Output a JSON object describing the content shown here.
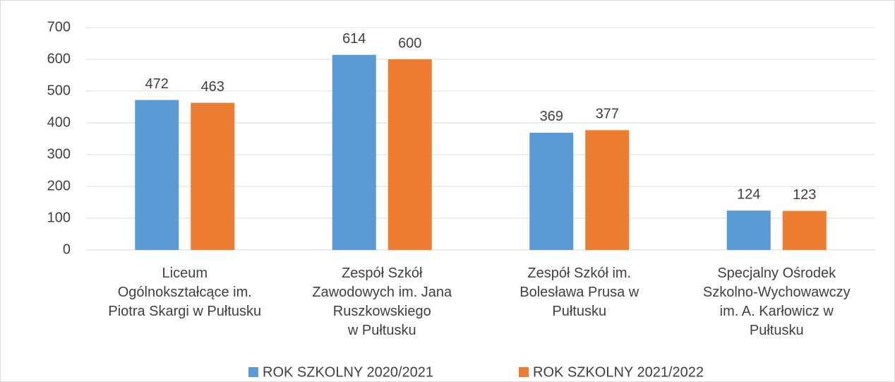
{
  "chart_data": {
    "type": "bar",
    "categories": [
      "Liceum\nOgólnokształcące im.\nPiotra Skargi w Pułtusku",
      "Zespół Szkół\nZawodowych im. Jana\nRuszkowskiego\nw Pułtusku",
      "Zespół Szkół im.\nBolesława Prusa w\nPułtusku",
      "Specjalny Ośrodek\nSzkolno-Wychowawczy\nim. A. Karłowicz w\nPułtusku"
    ],
    "series": [
      {
        "name": "ROK SZKOLNY 2020/2021",
        "color": "#5b9bd5",
        "values": [
          472,
          614,
          369,
          124
        ]
      },
      {
        "name": "ROK SZKOLNY 2021/2022",
        "color": "#ed7d31",
        "values": [
          463,
          600,
          377,
          123
        ]
      }
    ],
    "ylim": [
      0,
      700
    ],
    "yticks": [
      0,
      100,
      200,
      300,
      400,
      500,
      600,
      700
    ],
    "grid": true,
    "legend": "bottom"
  }
}
